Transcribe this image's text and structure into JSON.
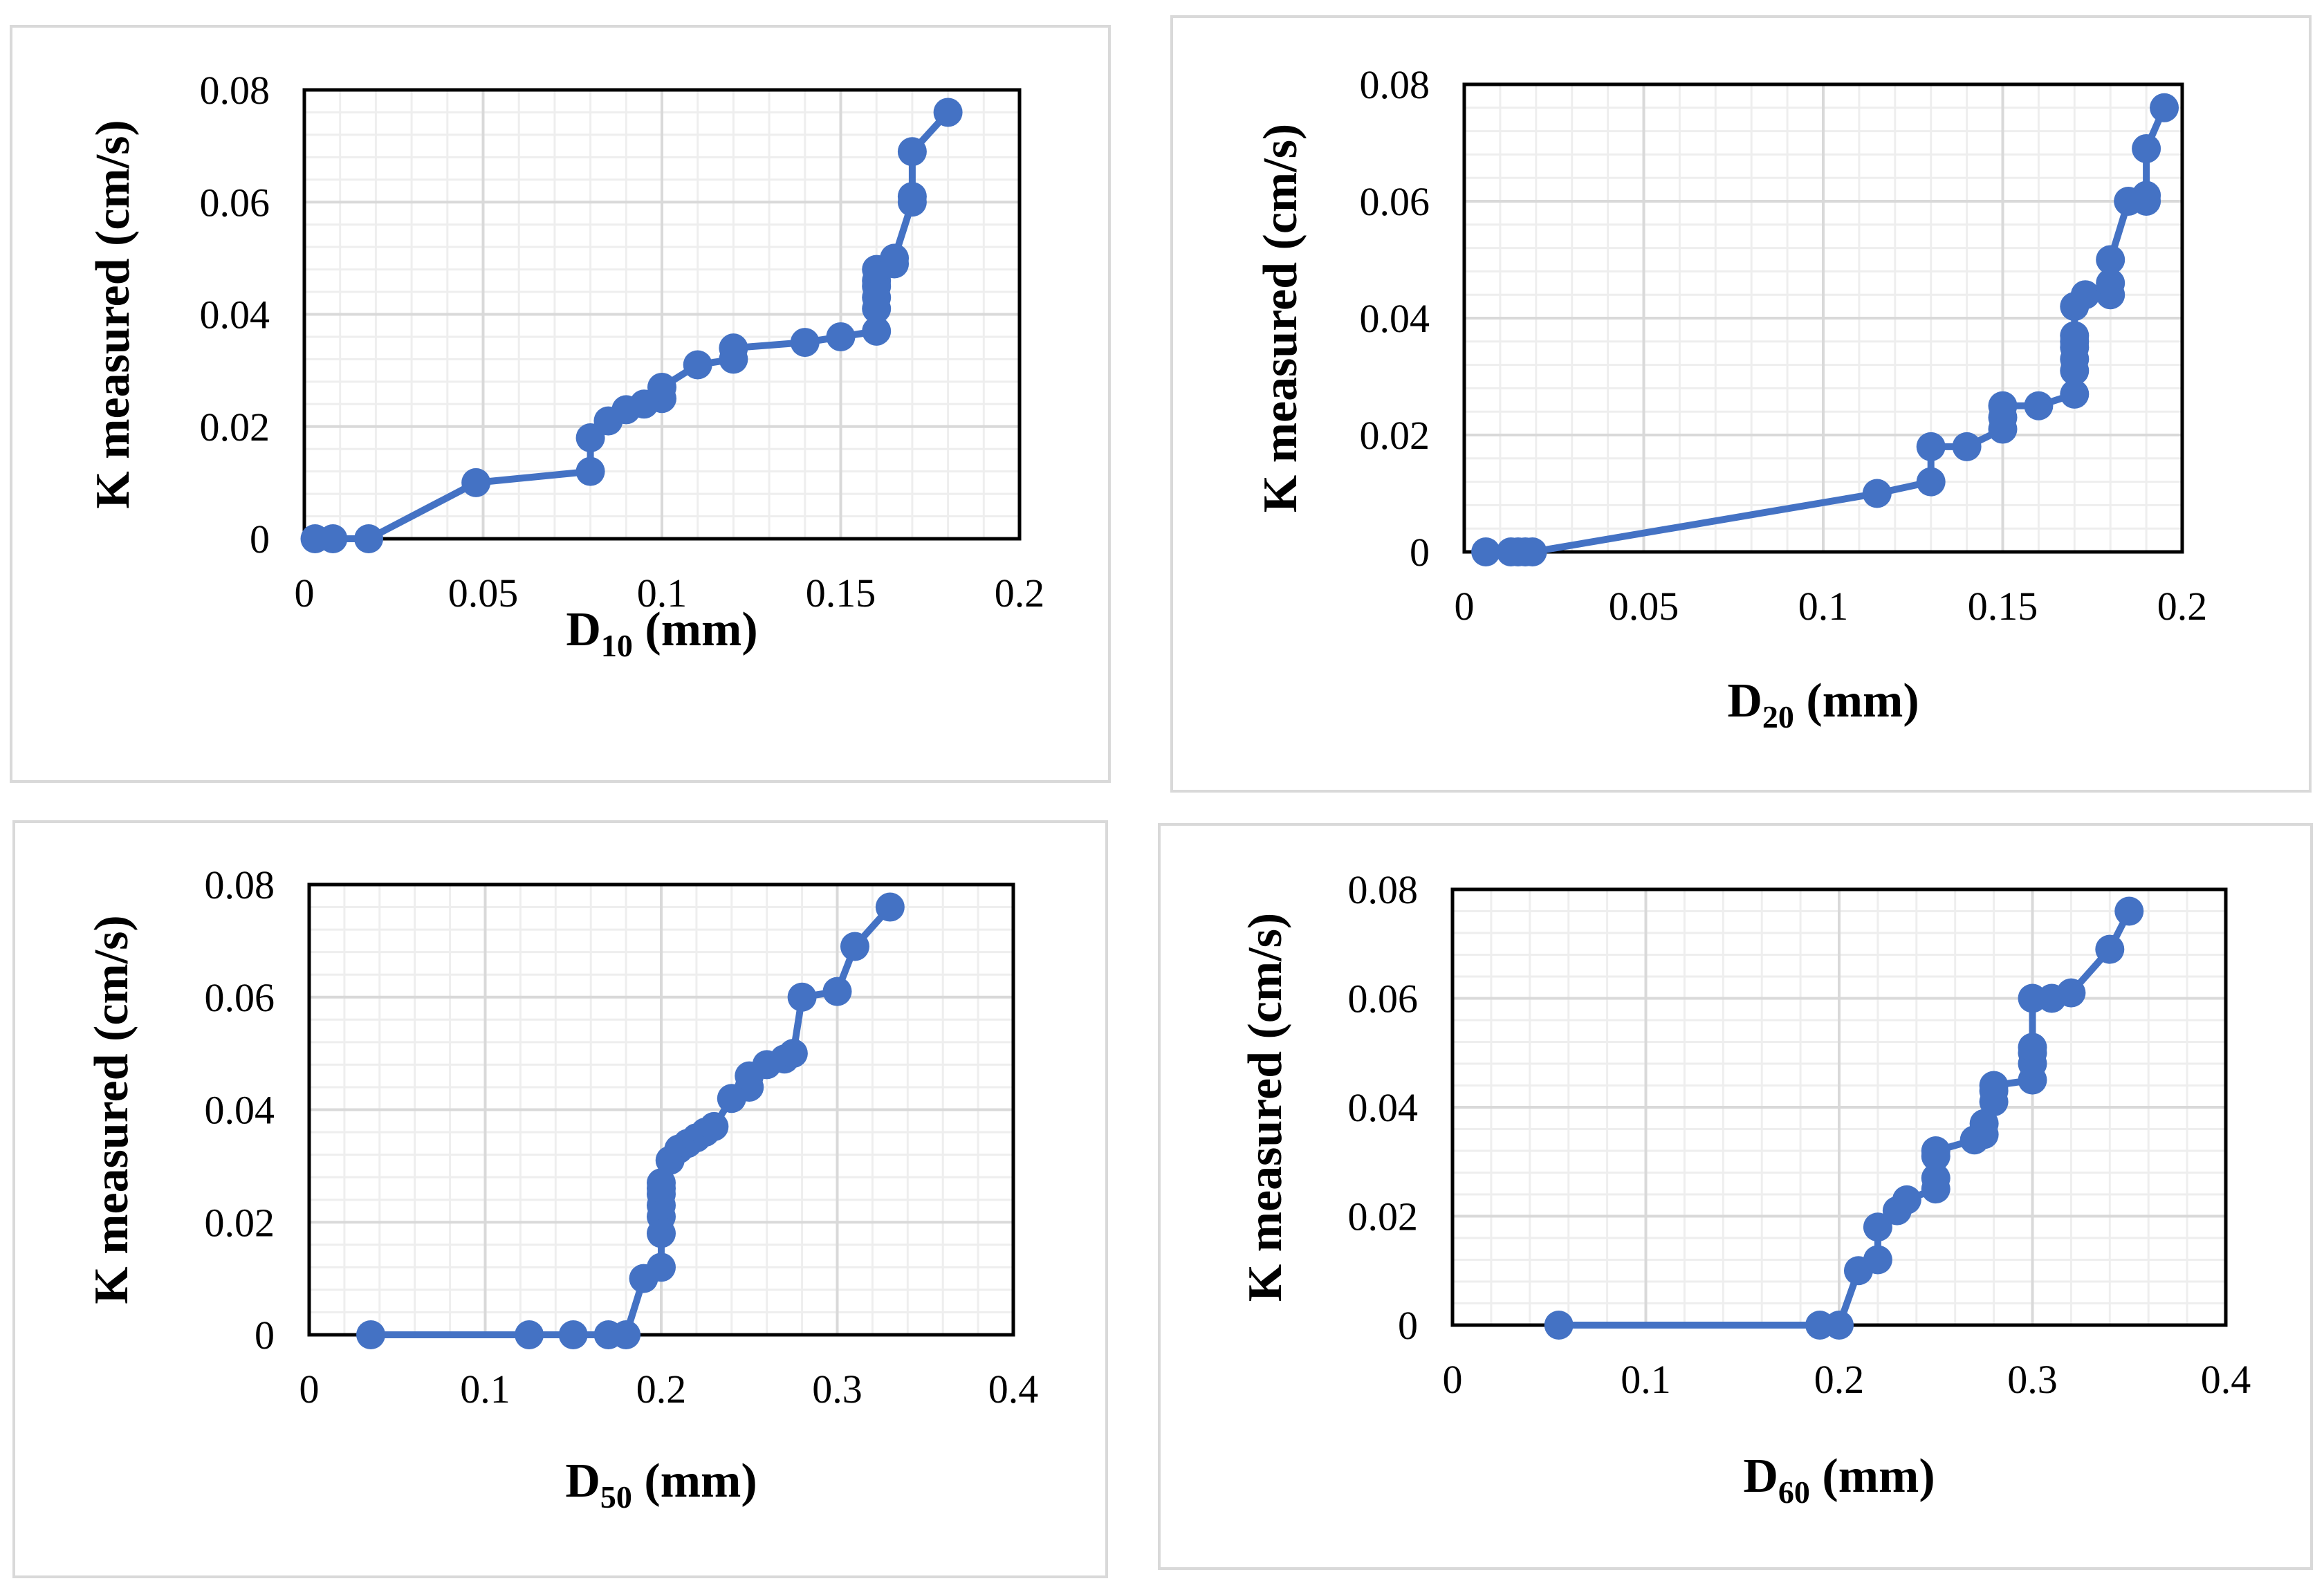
{
  "style": {
    "series_color": "#4472C4",
    "minor_grid_color": "#eeeeee",
    "major_grid_color": "#d9d9d9",
    "frame_color": "#000000"
  },
  "chart_data": [
    {
      "id": "d10",
      "type": "line",
      "ylabel": "K measured (cm/s)",
      "xlabel_main": "D",
      "xlabel_sub": "10",
      "xlabel_unit": " (mm)",
      "xlim": [
        0,
        0.2
      ],
      "ylim": [
        0,
        0.08
      ],
      "xticks": [
        0,
        0.05,
        0.1,
        0.15,
        0.2
      ],
      "xtick_labels": [
        "0",
        "0.05",
        "0.1",
        "0.15",
        "0.2"
      ],
      "yticks": [
        0,
        0.02,
        0.04,
        0.06,
        0.08
      ],
      "ytick_labels": [
        "0",
        "0.02",
        "0.04",
        "0.06",
        "0.08"
      ],
      "series": [
        {
          "name": "K measured",
          "x": [
            0.003,
            0.008,
            0.018,
            0.048,
            0.08,
            0.08,
            0.085,
            0.09,
            0.095,
            0.1,
            0.1,
            0.11,
            0.12,
            0.12,
            0.14,
            0.15,
            0.16,
            0.16,
            0.16,
            0.16,
            0.16,
            0.16,
            0.165,
            0.165,
            0.17,
            0.17,
            0.17,
            0.18
          ],
          "y": [
            0,
            0,
            0,
            0.01,
            0.012,
            0.018,
            0.021,
            0.023,
            0.024,
            0.025,
            0.027,
            0.031,
            0.032,
            0.034,
            0.035,
            0.036,
            0.037,
            0.041,
            0.043,
            0.045,
            0.046,
            0.048,
            0.049,
            0.05,
            0.06,
            0.061,
            0.069,
            0.076
          ]
        }
      ]
    },
    {
      "id": "d20",
      "type": "line",
      "ylabel": "K measured (cm/s)",
      "xlabel_main": "D",
      "xlabel_sub": "20",
      "xlabel_unit": " (mm)",
      "xlim": [
        0,
        0.2
      ],
      "ylim": [
        0,
        0.08
      ],
      "xticks": [
        0,
        0.05,
        0.1,
        0.15,
        0.2
      ],
      "xtick_labels": [
        "0",
        "0.05",
        "0.1",
        "0.15",
        "0.2"
      ],
      "yticks": [
        0,
        0.02,
        0.04,
        0.06,
        0.08
      ],
      "ytick_labels": [
        "0",
        "0.02",
        "0.04",
        "0.06",
        "0.08"
      ],
      "series": [
        {
          "name": "K measured",
          "x": [
            0.006,
            0.013,
            0.015,
            0.017,
            0.019,
            0.115,
            0.13,
            0.13,
            0.14,
            0.15,
            0.15,
            0.15,
            0.16,
            0.17,
            0.17,
            0.17,
            0.17,
            0.17,
            0.17,
            0.17,
            0.173,
            0.18,
            0.18,
            0.18,
            0.185,
            0.19,
            0.19,
            0.19,
            0.195
          ],
          "y": [
            0,
            0,
            0,
            0,
            0,
            0.01,
            0.012,
            0.018,
            0.018,
            0.021,
            0.023,
            0.025,
            0.025,
            0.027,
            0.031,
            0.033,
            0.035,
            0.036,
            0.037,
            0.042,
            0.044,
            0.044,
            0.046,
            0.05,
            0.06,
            0.06,
            0.061,
            0.069,
            0.076
          ]
        }
      ]
    },
    {
      "id": "d50",
      "type": "line",
      "ylabel": "K measured (cm/s)",
      "xlabel_main": "D",
      "xlabel_sub": "50",
      "xlabel_unit": " (mm)",
      "xlim": [
        0,
        0.4
      ],
      "ylim": [
        0,
        0.08
      ],
      "xticks": [
        0,
        0.1,
        0.2,
        0.3,
        0.4
      ],
      "xtick_labels": [
        "0",
        "0.1",
        "0.2",
        "0.3",
        "0.4"
      ],
      "yticks": [
        0,
        0.02,
        0.04,
        0.06,
        0.08
      ],
      "ytick_labels": [
        "0",
        "0.02",
        "0.04",
        "0.06",
        "0.08"
      ],
      "series": [
        {
          "name": "K measured",
          "x": [
            0.035,
            0.125,
            0.15,
            0.17,
            0.18,
            0.19,
            0.2,
            0.2,
            0.2,
            0.2,
            0.2,
            0.2,
            0.2,
            0.205,
            0.21,
            0.215,
            0.22,
            0.225,
            0.23,
            0.24,
            0.25,
            0.25,
            0.26,
            0.27,
            0.275,
            0.28,
            0.3,
            0.31,
            0.33
          ],
          "y": [
            0,
            0,
            0,
            0,
            0,
            0.01,
            0.012,
            0.018,
            0.021,
            0.023,
            0.025,
            0.026,
            0.027,
            0.031,
            0.033,
            0.034,
            0.035,
            0.036,
            0.037,
            0.042,
            0.044,
            0.046,
            0.048,
            0.049,
            0.05,
            0.06,
            0.061,
            0.069,
            0.076
          ]
        }
      ]
    },
    {
      "id": "d60",
      "type": "line",
      "ylabel": "K measured (cm/s)",
      "xlabel_main": "D",
      "xlabel_sub": "60",
      "xlabel_unit": " (mm)",
      "xlim": [
        0,
        0.4
      ],
      "ylim": [
        0,
        0.08
      ],
      "xticks": [
        0,
        0.1,
        0.2,
        0.3,
        0.4
      ],
      "xtick_labels": [
        "0",
        "0.1",
        "0.2",
        "0.3",
        "0.4"
      ],
      "yticks": [
        0,
        0.02,
        0.04,
        0.06,
        0.08
      ],
      "ytick_labels": [
        "0",
        "0.02",
        "0.04",
        "0.06",
        "0.08"
      ],
      "series": [
        {
          "name": "K measured",
          "x": [
            0.055,
            0.19,
            0.2,
            0.21,
            0.22,
            0.22,
            0.23,
            0.235,
            0.25,
            0.25,
            0.25,
            0.25,
            0.27,
            0.275,
            0.275,
            0.28,
            0.28,
            0.28,
            0.3,
            0.3,
            0.3,
            0.3,
            0.3,
            0.31,
            0.32,
            0.34,
            0.35
          ],
          "y": [
            0,
            0,
            0,
            0.01,
            0.012,
            0.018,
            0.021,
            0.023,
            0.025,
            0.027,
            0.031,
            0.032,
            0.034,
            0.035,
            0.037,
            0.041,
            0.043,
            0.044,
            0.045,
            0.048,
            0.05,
            0.051,
            0.06,
            0.06,
            0.061,
            0.069,
            0.076
          ]
        }
      ]
    }
  ]
}
